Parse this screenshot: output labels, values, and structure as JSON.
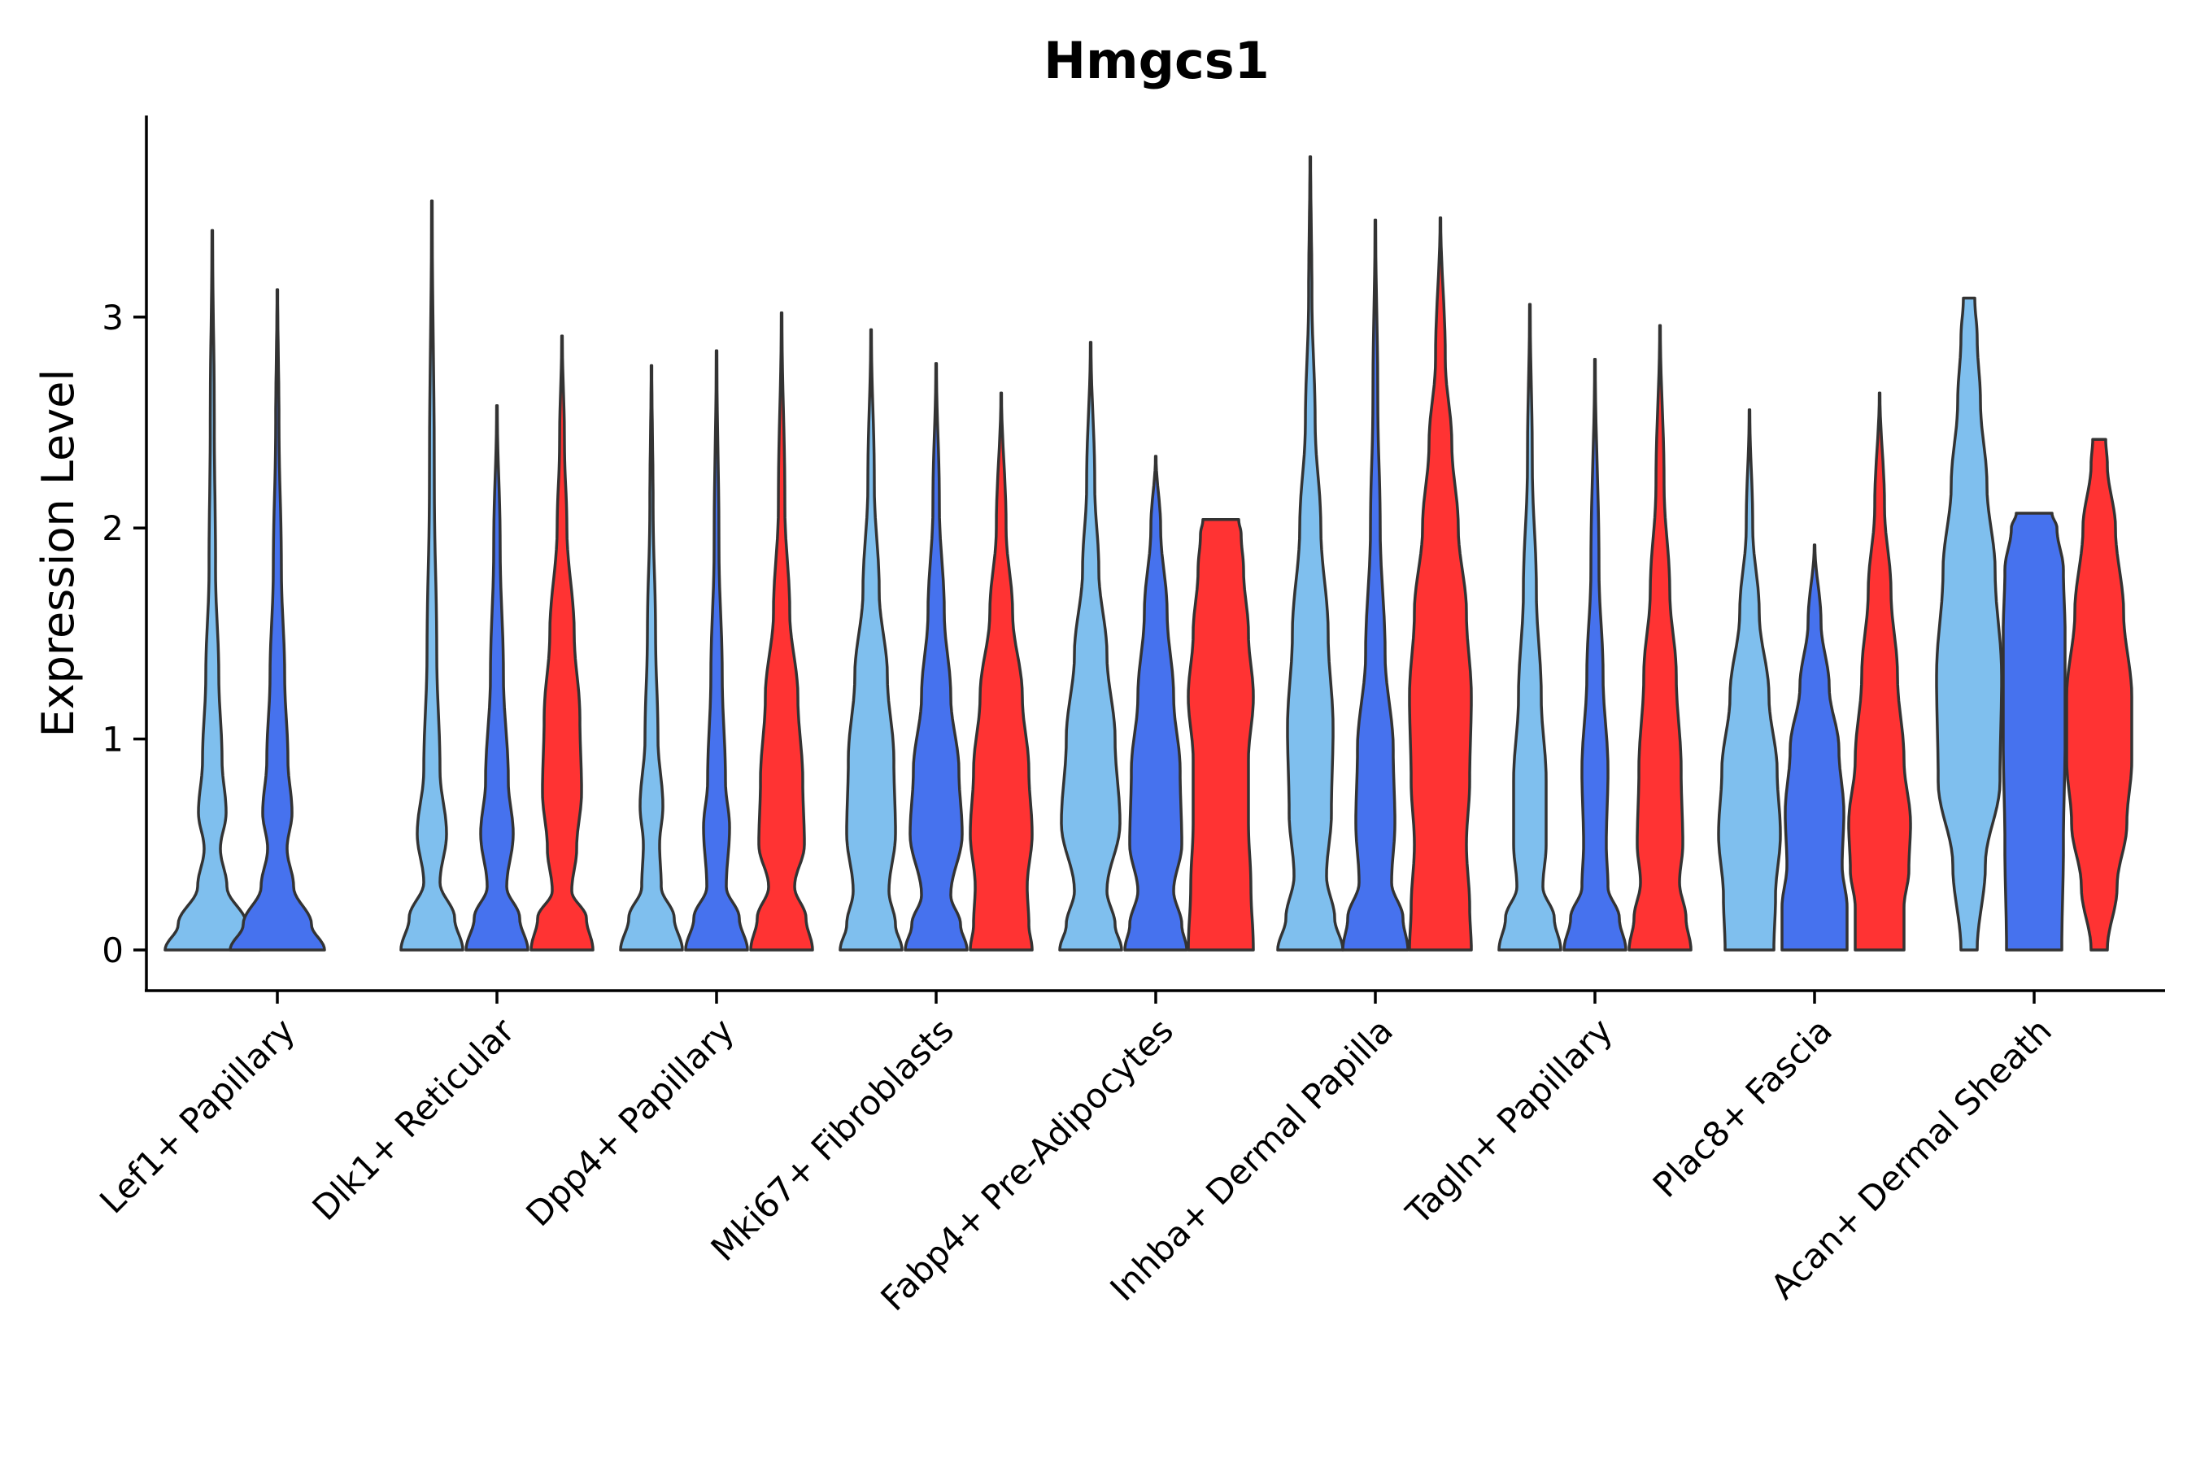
{
  "chart_data": {
    "type": "violin",
    "title": "Hmgcs1",
    "xlabel": "",
    "ylabel": "Expression Level",
    "ylim": [
      -0.19,
      3.95
    ],
    "yticks": [
      0,
      1,
      2,
      3
    ],
    "ytick_labels": [
      "0",
      "1",
      "2",
      "3"
    ],
    "legend": "none",
    "series_colors": {
      "light_blue": "#7fbfee",
      "blue": "#4672ee",
      "red": "#ff3333"
    },
    "series_order": [
      "light_blue",
      "blue",
      "red"
    ],
    "categories": [
      "Lef1+ Papillary",
      "Dlk1+ Reticular",
      "Dpp4+ Papillary",
      "Mki67+ Fibroblasts",
      "Fabp4+ Pre-Adipocytes",
      "Inhba+ Dermal Papilla",
      "Tagln+ Papillary",
      "Plac8+ Fascia",
      "Acan+ Dermal Sheath"
    ],
    "violins": [
      {
        "category": "Lef1+ Papillary",
        "group": "light_blue",
        "max": 3.41,
        "profile": [
          [
            0,
            0.58
          ],
          [
            0.12,
            0.42
          ],
          [
            0.3,
            0.18
          ],
          [
            0.48,
            0.1
          ],
          [
            0.65,
            0.17
          ],
          [
            0.9,
            0.12
          ],
          [
            1.3,
            0.08
          ],
          [
            1.8,
            0.04
          ],
          [
            2.5,
            0.025
          ],
          [
            3.41,
            0.004
          ]
        ]
      },
      {
        "category": "Lef1+ Papillary",
        "group": "blue",
        "max": 3.13,
        "profile": [
          [
            0,
            0.58
          ],
          [
            0.12,
            0.42
          ],
          [
            0.3,
            0.2
          ],
          [
            0.48,
            0.12
          ],
          [
            0.65,
            0.18
          ],
          [
            0.9,
            0.13
          ],
          [
            1.3,
            0.09
          ],
          [
            1.8,
            0.05
          ],
          [
            2.5,
            0.02
          ],
          [
            3.13,
            0.004
          ]
        ]
      },
      {
        "category": "Dlk1+ Reticular",
        "group": "light_blue",
        "max": 3.55,
        "profile": [
          [
            0,
            0.38
          ],
          [
            0.15,
            0.28
          ],
          [
            0.32,
            0.1
          ],
          [
            0.55,
            0.18
          ],
          [
            0.85,
            0.1
          ],
          [
            1.4,
            0.06
          ],
          [
            2.2,
            0.03
          ],
          [
            3.55,
            0.004
          ]
        ]
      },
      {
        "category": "Dlk1+ Reticular",
        "group": "blue",
        "max": 2.58,
        "profile": [
          [
            0,
            0.38
          ],
          [
            0.15,
            0.28
          ],
          [
            0.3,
            0.12
          ],
          [
            0.55,
            0.2
          ],
          [
            0.8,
            0.14
          ],
          [
            1.3,
            0.08
          ],
          [
            1.9,
            0.04
          ],
          [
            2.58,
            0.004
          ]
        ]
      },
      {
        "category": "Dlk1+ Reticular",
        "group": "red",
        "max": 2.91,
        "profile": [
          [
            0,
            0.38
          ],
          [
            0.15,
            0.3
          ],
          [
            0.28,
            0.12
          ],
          [
            0.48,
            0.18
          ],
          [
            0.75,
            0.24
          ],
          [
            1.1,
            0.22
          ],
          [
            1.5,
            0.15
          ],
          [
            2.0,
            0.06
          ],
          [
            2.4,
            0.03
          ],
          [
            2.91,
            0.004
          ]
        ]
      },
      {
        "category": "Dpp4+ Papillary",
        "group": "light_blue",
        "max": 2.77,
        "profile": [
          [
            0,
            0.38
          ],
          [
            0.15,
            0.28
          ],
          [
            0.3,
            0.12
          ],
          [
            0.5,
            0.1
          ],
          [
            0.68,
            0.14
          ],
          [
            1.0,
            0.08
          ],
          [
            1.5,
            0.05
          ],
          [
            2.1,
            0.02
          ],
          [
            2.77,
            0.004
          ]
        ]
      },
      {
        "category": "Dpp4+ Papillary",
        "group": "blue",
        "max": 2.84,
        "profile": [
          [
            0,
            0.38
          ],
          [
            0.15,
            0.28
          ],
          [
            0.3,
            0.12
          ],
          [
            0.58,
            0.16
          ],
          [
            0.8,
            0.11
          ],
          [
            1.3,
            0.07
          ],
          [
            1.9,
            0.03
          ],
          [
            2.84,
            0.004
          ]
        ]
      },
      {
        "category": "Dpp4+ Papillary",
        "group": "red",
        "max": 3.02,
        "profile": [
          [
            0,
            0.38
          ],
          [
            0.15,
            0.3
          ],
          [
            0.3,
            0.16
          ],
          [
            0.5,
            0.28
          ],
          [
            0.8,
            0.26
          ],
          [
            1.2,
            0.2
          ],
          [
            1.6,
            0.1
          ],
          [
            2.1,
            0.04
          ],
          [
            3.02,
            0.004
          ]
        ]
      },
      {
        "category": "Mki67+ Fibroblasts",
        "group": "light_blue",
        "max": 2.94,
        "profile": [
          [
            0,
            0.38
          ],
          [
            0.12,
            0.3
          ],
          [
            0.28,
            0.22
          ],
          [
            0.55,
            0.3
          ],
          [
            0.9,
            0.28
          ],
          [
            1.3,
            0.2
          ],
          [
            1.7,
            0.1
          ],
          [
            2.2,
            0.04
          ],
          [
            2.94,
            0.004
          ]
        ]
      },
      {
        "category": "Mki67+ Fibroblasts",
        "group": "blue",
        "max": 2.78,
        "profile": [
          [
            0,
            0.38
          ],
          [
            0.12,
            0.3
          ],
          [
            0.26,
            0.18
          ],
          [
            0.55,
            0.32
          ],
          [
            0.85,
            0.28
          ],
          [
            1.2,
            0.18
          ],
          [
            1.6,
            0.1
          ],
          [
            2.1,
            0.04
          ],
          [
            2.78,
            0.004
          ]
        ]
      },
      {
        "category": "Mki67+ Fibroblasts",
        "group": "red",
        "max": 2.64,
        "profile": [
          [
            0,
            0.38
          ],
          [
            0.12,
            0.34
          ],
          [
            0.3,
            0.32
          ],
          [
            0.55,
            0.38
          ],
          [
            0.85,
            0.34
          ],
          [
            1.2,
            0.26
          ],
          [
            1.6,
            0.14
          ],
          [
            2.0,
            0.06
          ],
          [
            2.64,
            0.004
          ]
        ]
      },
      {
        "category": "Fabp4+ Pre-Adipocytes",
        "group": "light_blue",
        "max": 2.88,
        "profile": [
          [
            0,
            0.38
          ],
          [
            0.12,
            0.3
          ],
          [
            0.28,
            0.2
          ],
          [
            0.6,
            0.36
          ],
          [
            1.0,
            0.3
          ],
          [
            1.4,
            0.2
          ],
          [
            1.8,
            0.1
          ],
          [
            2.2,
            0.05
          ],
          [
            2.88,
            0.004
          ]
        ]
      },
      {
        "category": "Fabp4+ Pre-Adipocytes",
        "group": "blue",
        "max": 2.34,
        "profile": [
          [
            0,
            0.38
          ],
          [
            0.12,
            0.32
          ],
          [
            0.28,
            0.22
          ],
          [
            0.5,
            0.32
          ],
          [
            0.85,
            0.3
          ],
          [
            1.2,
            0.22
          ],
          [
            1.6,
            0.14
          ],
          [
            2.0,
            0.06
          ],
          [
            2.34,
            0.004
          ]
        ]
      },
      {
        "category": "Fabp4+ Pre-Adipocytes",
        "group": "red",
        "max": 2.04,
        "profile": [
          [
            0,
            0.4
          ],
          [
            0.3,
            0.37
          ],
          [
            0.6,
            0.34
          ],
          [
            0.9,
            0.34
          ],
          [
            1.2,
            0.4
          ],
          [
            1.5,
            0.34
          ],
          [
            1.8,
            0.28
          ],
          [
            1.97,
            0.25
          ],
          [
            2.04,
            0.22
          ]
        ]
      },
      {
        "category": "Inhba+ Dermal Papilla",
        "group": "light_blue",
        "max": 3.76,
        "profile": [
          [
            0,
            0.4
          ],
          [
            0.15,
            0.3
          ],
          [
            0.35,
            0.2
          ],
          [
            0.65,
            0.26
          ],
          [
            1.05,
            0.28
          ],
          [
            1.5,
            0.22
          ],
          [
            2.0,
            0.13
          ],
          [
            2.5,
            0.06
          ],
          [
            3.1,
            0.02
          ],
          [
            3.76,
            0.004
          ]
        ]
      },
      {
        "category": "Inhba+ Dermal Papilla",
        "group": "blue",
        "max": 3.46,
        "profile": [
          [
            0,
            0.4
          ],
          [
            0.15,
            0.34
          ],
          [
            0.32,
            0.2
          ],
          [
            0.6,
            0.24
          ],
          [
            0.95,
            0.22
          ],
          [
            1.4,
            0.12
          ],
          [
            2.0,
            0.06
          ],
          [
            2.6,
            0.03
          ],
          [
            3.46,
            0.004
          ]
        ]
      },
      {
        "category": "Inhba+ Dermal Papilla",
        "group": "red",
        "max": 3.47,
        "profile": [
          [
            0,
            0.38
          ],
          [
            0.2,
            0.36
          ],
          [
            0.5,
            0.32
          ],
          [
            0.8,
            0.36
          ],
          [
            1.2,
            0.38
          ],
          [
            1.6,
            0.32
          ],
          [
            2.0,
            0.22
          ],
          [
            2.4,
            0.14
          ],
          [
            2.8,
            0.06
          ],
          [
            3.47,
            0.004
          ]
        ]
      },
      {
        "category": "Tagln+ Papillary",
        "group": "light_blue",
        "max": 3.06,
        "profile": [
          [
            0,
            0.38
          ],
          [
            0.15,
            0.3
          ],
          [
            0.3,
            0.16
          ],
          [
            0.5,
            0.2
          ],
          [
            0.8,
            0.2
          ],
          [
            1.2,
            0.14
          ],
          [
            1.7,
            0.08
          ],
          [
            2.3,
            0.03
          ],
          [
            3.06,
            0.004
          ]
        ]
      },
      {
        "category": "Tagln+ Papillary",
        "group": "blue",
        "max": 2.8,
        "profile": [
          [
            0,
            0.38
          ],
          [
            0.15,
            0.3
          ],
          [
            0.3,
            0.16
          ],
          [
            0.5,
            0.14
          ],
          [
            0.85,
            0.16
          ],
          [
            1.3,
            0.1
          ],
          [
            1.8,
            0.05
          ],
          [
            2.8,
            0.004
          ]
        ]
      },
      {
        "category": "Tagln+ Papillary",
        "group": "red",
        "max": 2.96,
        "profile": [
          [
            0,
            0.38
          ],
          [
            0.15,
            0.32
          ],
          [
            0.32,
            0.24
          ],
          [
            0.5,
            0.28
          ],
          [
            0.85,
            0.26
          ],
          [
            1.3,
            0.2
          ],
          [
            1.7,
            0.12
          ],
          [
            2.2,
            0.05
          ],
          [
            2.96,
            0.004
          ]
        ]
      },
      {
        "category": "Plac8+ Fascia",
        "group": "light_blue",
        "max": 2.56,
        "profile": [
          [
            0,
            0.3
          ],
          [
            0.25,
            0.32
          ],
          [
            0.55,
            0.38
          ],
          [
            0.85,
            0.34
          ],
          [
            1.2,
            0.24
          ],
          [
            1.6,
            0.12
          ],
          [
            2.0,
            0.04
          ],
          [
            2.56,
            0.004
          ]
        ]
      },
      {
        "category": "Plac8+ Fascia",
        "group": "blue",
        "max": 1.92,
        "profile": [
          [
            0,
            0.4
          ],
          [
            0.2,
            0.4
          ],
          [
            0.4,
            0.34
          ],
          [
            0.65,
            0.36
          ],
          [
            0.95,
            0.3
          ],
          [
            1.25,
            0.18
          ],
          [
            1.55,
            0.08
          ],
          [
            1.92,
            0.004
          ]
        ]
      },
      {
        "category": "Plac8+ Fascia",
        "group": "red",
        "max": 2.64,
        "profile": [
          [
            0,
            0.3
          ],
          [
            0.2,
            0.3
          ],
          [
            0.38,
            0.36
          ],
          [
            0.6,
            0.38
          ],
          [
            0.9,
            0.3
          ],
          [
            1.3,
            0.22
          ],
          [
            1.7,
            0.14
          ],
          [
            2.1,
            0.06
          ],
          [
            2.64,
            0.004
          ]
        ]
      },
      {
        "category": "Acan+ Dermal Sheath",
        "group": "light_blue",
        "max": 3.09,
        "profile": [
          [
            0,
            0.1
          ],
          [
            0.4,
            0.2
          ],
          [
            0.8,
            0.38
          ],
          [
            1.3,
            0.4
          ],
          [
            1.8,
            0.32
          ],
          [
            2.2,
            0.22
          ],
          [
            2.6,
            0.14
          ],
          [
            2.9,
            0.1
          ],
          [
            3.09,
            0.07
          ]
        ]
      },
      {
        "category": "Acan+ Dermal Sheath",
        "group": "blue",
        "max": 2.07,
        "profile": [
          [
            0,
            0.34
          ],
          [
            0.5,
            0.36
          ],
          [
            1.0,
            0.38
          ],
          [
            1.5,
            0.38
          ],
          [
            1.8,
            0.36
          ],
          [
            2.0,
            0.28
          ],
          [
            2.07,
            0.22
          ]
        ]
      },
      {
        "category": "Acan+ Dermal Sheath",
        "group": "red",
        "max": 2.42,
        "profile": [
          [
            0,
            0.1
          ],
          [
            0.3,
            0.22
          ],
          [
            0.6,
            0.34
          ],
          [
            0.9,
            0.4
          ],
          [
            1.2,
            0.4
          ],
          [
            1.6,
            0.3
          ],
          [
            2.0,
            0.2
          ],
          [
            2.3,
            0.1
          ],
          [
            2.42,
            0.08
          ]
        ]
      }
    ]
  }
}
